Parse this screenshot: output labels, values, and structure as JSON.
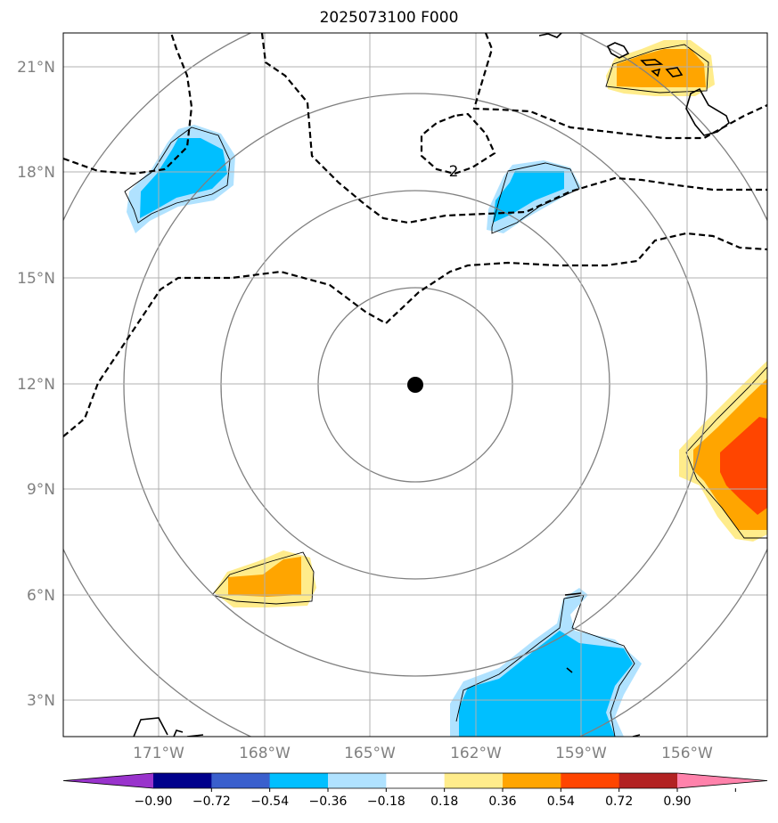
{
  "title": "2025073100 F000",
  "map": {
    "lat_labels": [
      "21°N",
      "18°N",
      "15°N",
      "12°N",
      "9°N",
      "6°N",
      "3°N"
    ],
    "lon_labels": [
      "171°W",
      "168°W",
      "165°W",
      "162°W",
      "159°W",
      "156°W"
    ],
    "contour_label": "2",
    "center_marker": "storm-center-dot"
  },
  "colorbar": {
    "tick_labels": [
      "−0.90",
      "−0.72",
      "−0.54",
      "−0.36",
      "−0.18",
      "0.18",
      "0.36",
      "0.54",
      "0.72",
      "0.90"
    ],
    "colors": [
      "#9933cc",
      "#00008b",
      "#3a5fcd",
      "#00bfff",
      "#b0e2ff",
      "#ffffff",
      "#ffec8b",
      "#ffa500",
      "#ff4500",
      "#b22222",
      "#ff82ab"
    ]
  }
}
